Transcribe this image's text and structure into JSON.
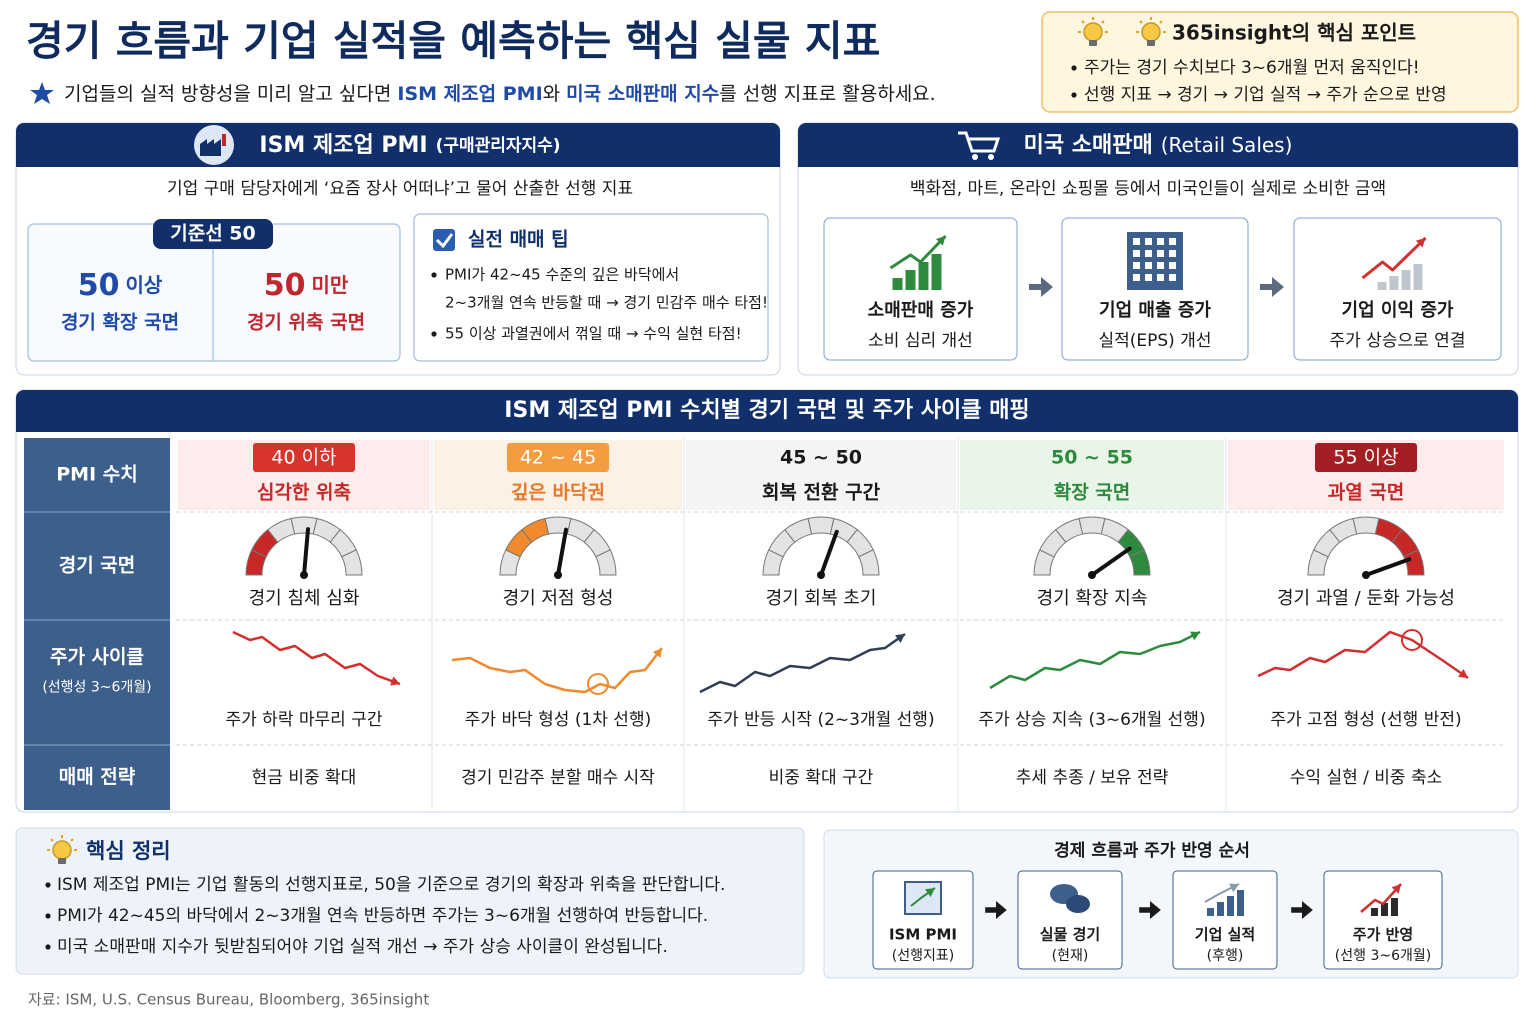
{
  "header": {
    "title": "경기 흐름과 기업 실적을 예측하는 핵심 실물 지표",
    "subtitle": [
      "기업들의 실적 방향성을 미리 알고 싶다면 ",
      "ISM 제조업 PMI",
      "와 ",
      "미국 소매판매 지수",
      "를 선행 지표로 활용하세요."
    ]
  },
  "insight_box": {
    "title": "365insight의 핵심 포인트",
    "items": [
      "주가는 경기 수치보다 3~6개월 먼저 움직인다!",
      "선행 지표 → 경기 → 기업 실적 → 주가 순으로 반영"
    ]
  },
  "pmi_panel": {
    "title": "ISM 제조업 PMI",
    "title_sub": "(구매관리자지수)",
    "description": "기업 구매 담당자에게 ‘요즘 장사 어떠냐’고 물어 산출한 선행 지표",
    "baseline": {
      "label": "기준선 50",
      "above": {
        "value": "50",
        "suffix": "이상",
        "text": "경기 확장 국면"
      },
      "below": {
        "value": "50",
        "suffix": "미만",
        "text": "경기 위축 국면"
      }
    },
    "tips": {
      "title": "실전 매매 팁",
      "items": [
        [
          "PMI가 42~45 수준의 깊은 바닥에서",
          "2~3개월 연속 반등할 때 → 경기 민감주 매수 타점!"
        ],
        [
          "55 이상 과열권에서 꺾일 때 → 수익 실현 타점!"
        ]
      ]
    }
  },
  "retail_panel": {
    "title": "미국 소매판매",
    "title_sub": "(Retail Sales)",
    "description": "백화점, 마트, 온라인 쇼핑몰 등에서 미국인들이 실제로 소비한 금액",
    "steps": [
      {
        "title": "소매판매 증가",
        "sub": "소비 심리 개선"
      },
      {
        "title": "기업 매출 증가",
        "sub": "실적(EPS) 개선"
      },
      {
        "title": "기업 이익 증가",
        "sub": "주가 상승으로 연결"
      }
    ]
  },
  "mapping": {
    "title": "ISM 제조업 PMI 수치별 경기 국면 및 주가 사이클 매핑",
    "row_headers": [
      "PMI 수치",
      "경기 국면",
      "주가 사이클",
      "매매 전략"
    ],
    "row_header_sub": "(선행성 3~6개월)",
    "columns": [
      {
        "range": "40 이하",
        "phase": "심각한 위축",
        "gauge_label": "경기 침체 심화",
        "cycle_label": "주가 하락 마무리 구간",
        "strategy": "현금 비중 확대"
      },
      {
        "range": "42 ~ 45",
        "phase": "깊은 바닥권",
        "gauge_label": "경기 저점 형성",
        "cycle_label": "주가 바닥 형성 (1차 선행)",
        "strategy": "경기 민감주 분할 매수 시작"
      },
      {
        "range": "45 ~ 50",
        "phase": "회복 전환 구간",
        "gauge_label": "경기 회복 초기",
        "cycle_label": "주가 반등 시작 (2~3개월 선행)",
        "strategy": "비중 확대 구간"
      },
      {
        "range": "50 ~ 55",
        "phase": "확장 국면",
        "gauge_label": "경기 확장 지속",
        "cycle_label": "주가 상승 지속 (3~6개월 선행)",
        "strategy": "추세 추종 / 보유 전략"
      },
      {
        "range": "55 이상",
        "phase": "과열 국면",
        "gauge_label": "경기 과열 / 둔화 가능성",
        "cycle_label": "주가 고점 형성 (선행 반전)",
        "strategy": "수익 실현 / 비중 축소"
      }
    ]
  },
  "summary": {
    "title": "핵심 정리",
    "items": [
      "ISM 제조업 PMI는 기업 활동의 선행지표로, 50을 기준으로 경기의 확장과 위축을 판단합니다.",
      "PMI가 42~45의 바닥에서 2~3개월 연속 반등하면 주가는 3~6개월 선행하여 반등합니다.",
      "미국 소매판매 지수가 뒷받침되어야 기업 실적 개선 → 주가 상승 사이클이 완성됩니다."
    ]
  },
  "flow": {
    "title": "경제 흐름과 주가 반영 순서",
    "steps": [
      {
        "title": "ISM PMI",
        "sub": "(선행지표)"
      },
      {
        "title": "실물 경기",
        "sub": "(현재)"
      },
      {
        "title": "기업 실적",
        "sub": "(후행)"
      },
      {
        "title": "주가 반영",
        "sub": "(선행 3~6개월)"
      }
    ]
  },
  "source": "자료: ISM, U.S. Census Bureau, Bloomberg, 365insight"
}
